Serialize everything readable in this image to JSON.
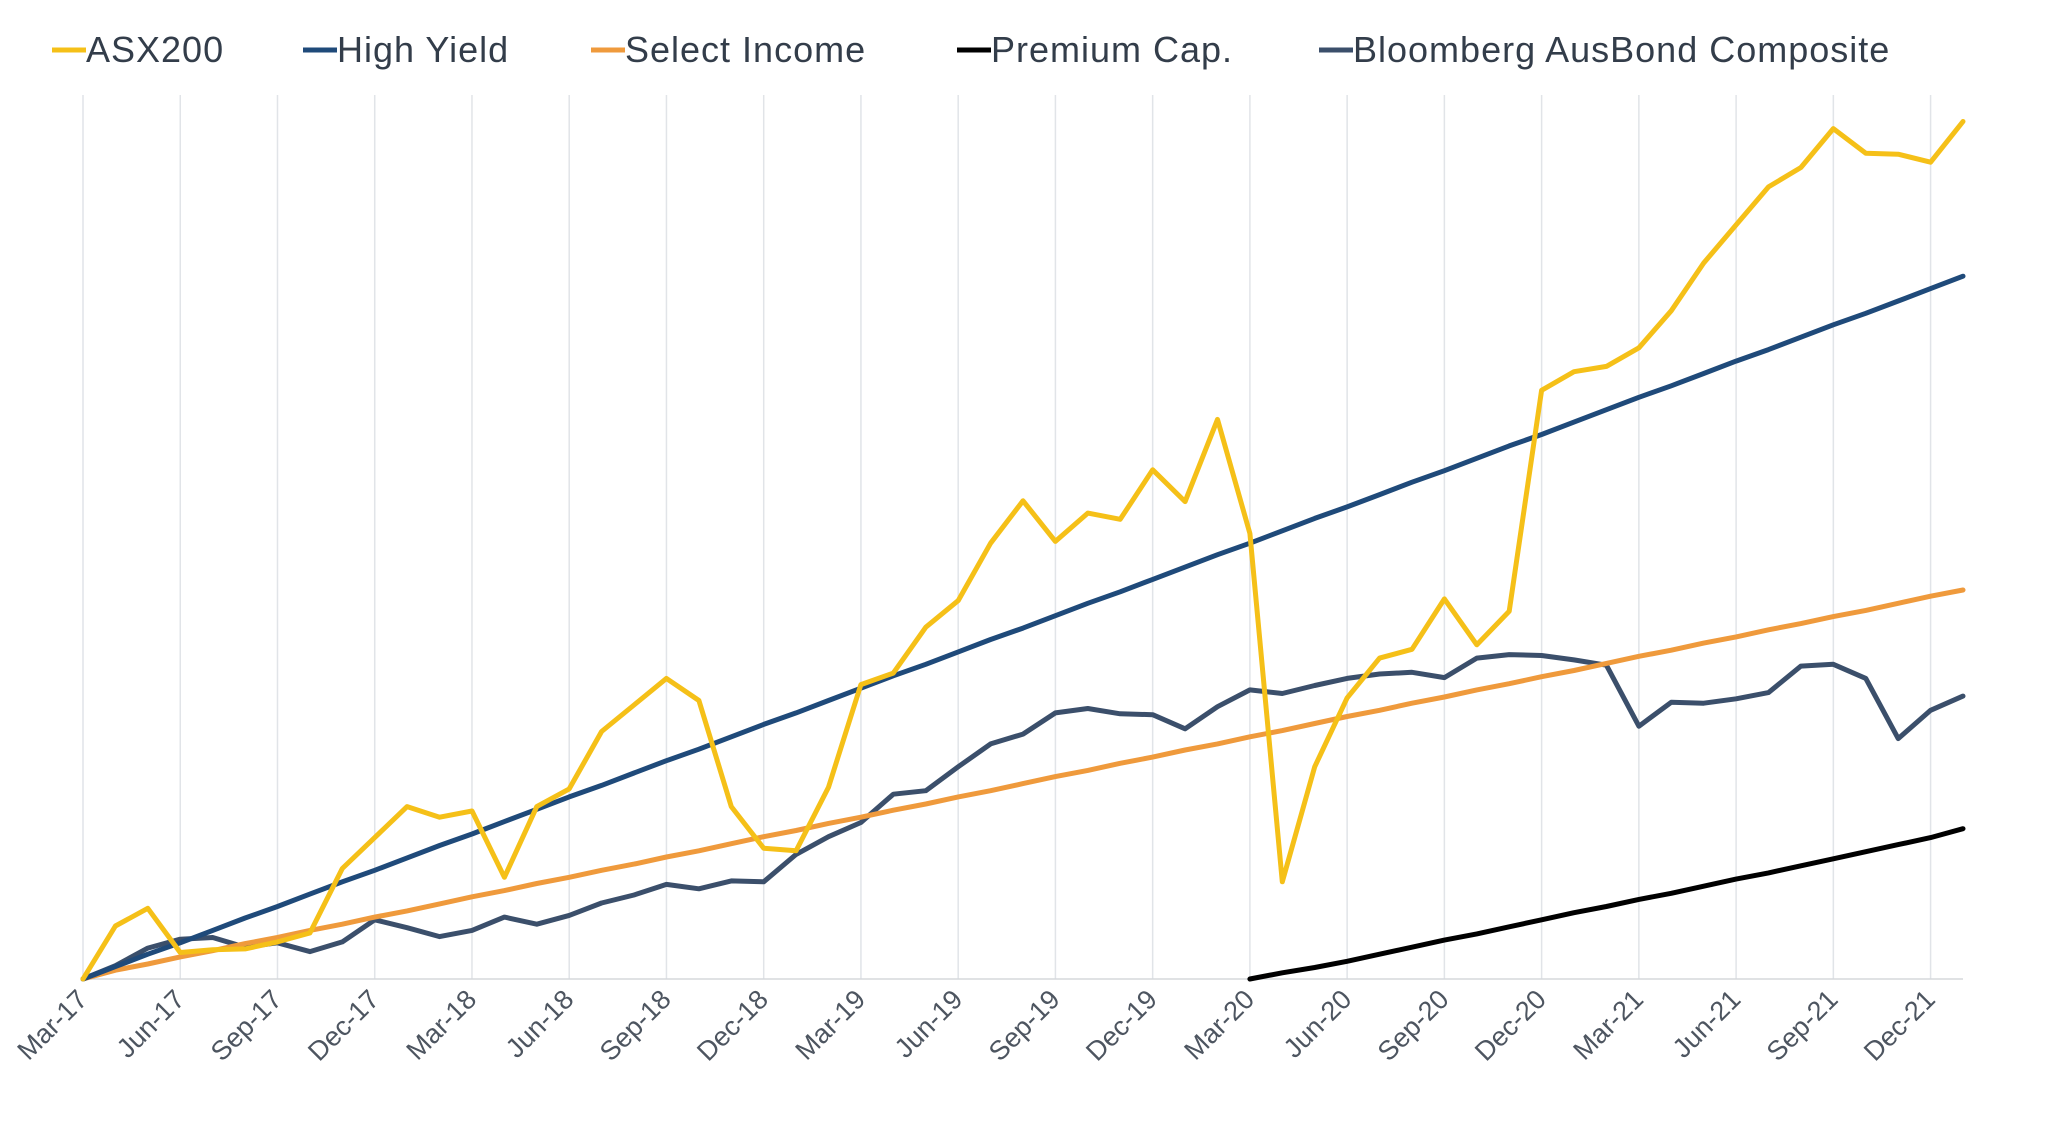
{
  "chart_data": {
    "type": "line",
    "grid": "vertical",
    "legend_position": "top",
    "x": [
      "Mar-17",
      "Apr-17",
      "May-17",
      "Jun-17",
      "Jul-17",
      "Aug-17",
      "Sep-17",
      "Oct-17",
      "Nov-17",
      "Dec-17",
      "Jan-18",
      "Feb-18",
      "Mar-18",
      "Apr-18",
      "May-18",
      "Jun-18",
      "Jul-18",
      "Aug-18",
      "Sep-18",
      "Oct-18",
      "Nov-18",
      "Dec-18",
      "Jan-19",
      "Feb-19",
      "Mar-19",
      "Apr-19",
      "May-19",
      "Jun-19",
      "Jul-19",
      "Aug-19",
      "Sep-19",
      "Oct-19",
      "Nov-19",
      "Dec-19",
      "Jan-20",
      "Feb-20",
      "Mar-20",
      "Apr-20",
      "May-20",
      "Jun-20",
      "Jul-20",
      "Aug-20",
      "Sep-20",
      "Oct-20",
      "Nov-20",
      "Dec-20",
      "Jan-21",
      "Feb-21",
      "Mar-21",
      "Apr-21",
      "May-21",
      "Jun-21",
      "Jul-21",
      "Aug-21",
      "Sep-21",
      "Oct-21",
      "Nov-21",
      "Dec-21",
      "Jan-22"
    ],
    "tick_labels": [
      "Mar-17",
      "Jun-17",
      "Sep-17",
      "Dec-17",
      "Mar-18",
      "Jun-18",
      "Sep-18",
      "Dec-18",
      "Mar-19",
      "Jun-19",
      "Sep-19",
      "Dec-19",
      "Mar-20",
      "Jun-20",
      "Sep-20",
      "Dec-20",
      "Mar-21",
      "Jun-21",
      "Sep-21",
      "Dec-21"
    ],
    "ylim": [
      0,
      100
    ],
    "series": [
      {
        "name": "ASX200",
        "color": "#f5c018",
        "values": [
          0,
          6,
          8,
          3,
          3.3,
          3.4,
          4.2,
          5.2,
          12.5,
          16,
          19.5,
          18.3,
          19,
          11.5,
          19.5,
          21.5,
          28,
          31,
          34,
          31.5,
          19.5,
          14.8,
          14.5,
          21.7,
          33.3,
          34.6,
          39.8,
          42.8,
          49.3,
          54.1,
          49.5,
          52.7,
          52,
          57.6,
          54,
          63.3,
          50.4,
          11,
          24,
          31.8,
          36.3,
          37.3,
          43,
          37.8,
          41.6,
          66.6,
          68.7,
          69.3,
          71.4,
          75.6,
          81,
          85.3,
          89.6,
          91.8,
          96.2,
          93.4,
          93.3,
          92.4,
          97
        ]
      },
      {
        "name": "High Yield",
        "color": "#1f4a7a",
        "values": [
          0,
          1.4,
          2.8,
          4.1,
          5.5,
          6.9,
          8.2,
          9.6,
          11,
          12.3,
          13.7,
          15.1,
          16.4,
          17.8,
          19.2,
          20.6,
          21.9,
          23.3,
          24.7,
          26,
          27.4,
          28.8,
          30.1,
          31.5,
          32.9,
          34.3,
          35.6,
          37,
          38.4,
          39.7,
          41.1,
          42.5,
          43.8,
          45.2,
          46.6,
          48,
          49.3,
          50.7,
          52.1,
          53.4,
          54.8,
          56.2,
          57.5,
          58.9,
          60.3,
          61.6,
          63,
          64.4,
          65.8,
          67.1,
          68.5,
          69.9,
          71.2,
          72.6,
          74,
          75.3,
          76.7,
          78.1,
          79.5
        ]
      },
      {
        "name": "Select Income",
        "color": "#ef9a3c",
        "values": [
          0,
          1,
          1.7,
          2.5,
          3.2,
          4,
          4.7,
          5.5,
          6.2,
          7,
          7.7,
          8.5,
          9.3,
          10,
          10.8,
          11.5,
          12.3,
          13,
          13.8,
          14.5,
          15.3,
          16.1,
          16.8,
          17.6,
          18.3,
          19.1,
          19.8,
          20.6,
          21.3,
          22.1,
          22.9,
          23.6,
          24.4,
          25.1,
          25.9,
          26.6,
          27.4,
          28.1,
          28.9,
          29.7,
          30.4,
          31.2,
          31.9,
          32.7,
          33.4,
          34.2,
          34.9,
          35.7,
          36.5,
          37.2,
          38,
          38.7,
          39.5,
          40.2,
          41,
          41.7,
          42.5,
          43.3,
          44
        ]
      },
      {
        "name": "Premium Cap.",
        "color": "#000000",
        "values": [
          null,
          null,
          null,
          null,
          null,
          null,
          null,
          null,
          null,
          null,
          null,
          null,
          null,
          null,
          null,
          null,
          null,
          null,
          null,
          null,
          null,
          null,
          null,
          null,
          null,
          null,
          null,
          null,
          null,
          null,
          null,
          null,
          null,
          null,
          null,
          null,
          0,
          0.7,
          1.3,
          2,
          2.8,
          3.6,
          4.4,
          5.1,
          5.9,
          6.7,
          7.5,
          8.2,
          9,
          9.7,
          10.5,
          11.3,
          12,
          12.8,
          13.6,
          14.4,
          15.2,
          16,
          17
        ]
      },
      {
        "name": "Bloomberg AusBond Composite",
        "color": "#3b4f6b",
        "values": [
          0,
          1.5,
          3.5,
          4.5,
          4.7,
          3.6,
          4.1,
          3.1,
          4.2,
          6.7,
          5.8,
          4.8,
          5.5,
          7,
          6.2,
          7.2,
          8.6,
          9.5,
          10.7,
          10.2,
          11.1,
          11,
          14.1,
          16.1,
          17.7,
          20.9,
          21.3,
          24,
          26.6,
          27.7,
          30.1,
          30.6,
          30,
          29.9,
          28.3,
          30.8,
          32.7,
          32.3,
          33.2,
          34,
          34.5,
          34.7,
          34.1,
          36.3,
          36.7,
          36.6,
          36.1,
          35.5,
          28.6,
          31.3,
          31.2,
          31.7,
          32.4,
          35.4,
          35.6,
          34,
          27.2,
          30.4,
          32
        ]
      }
    ]
  }
}
